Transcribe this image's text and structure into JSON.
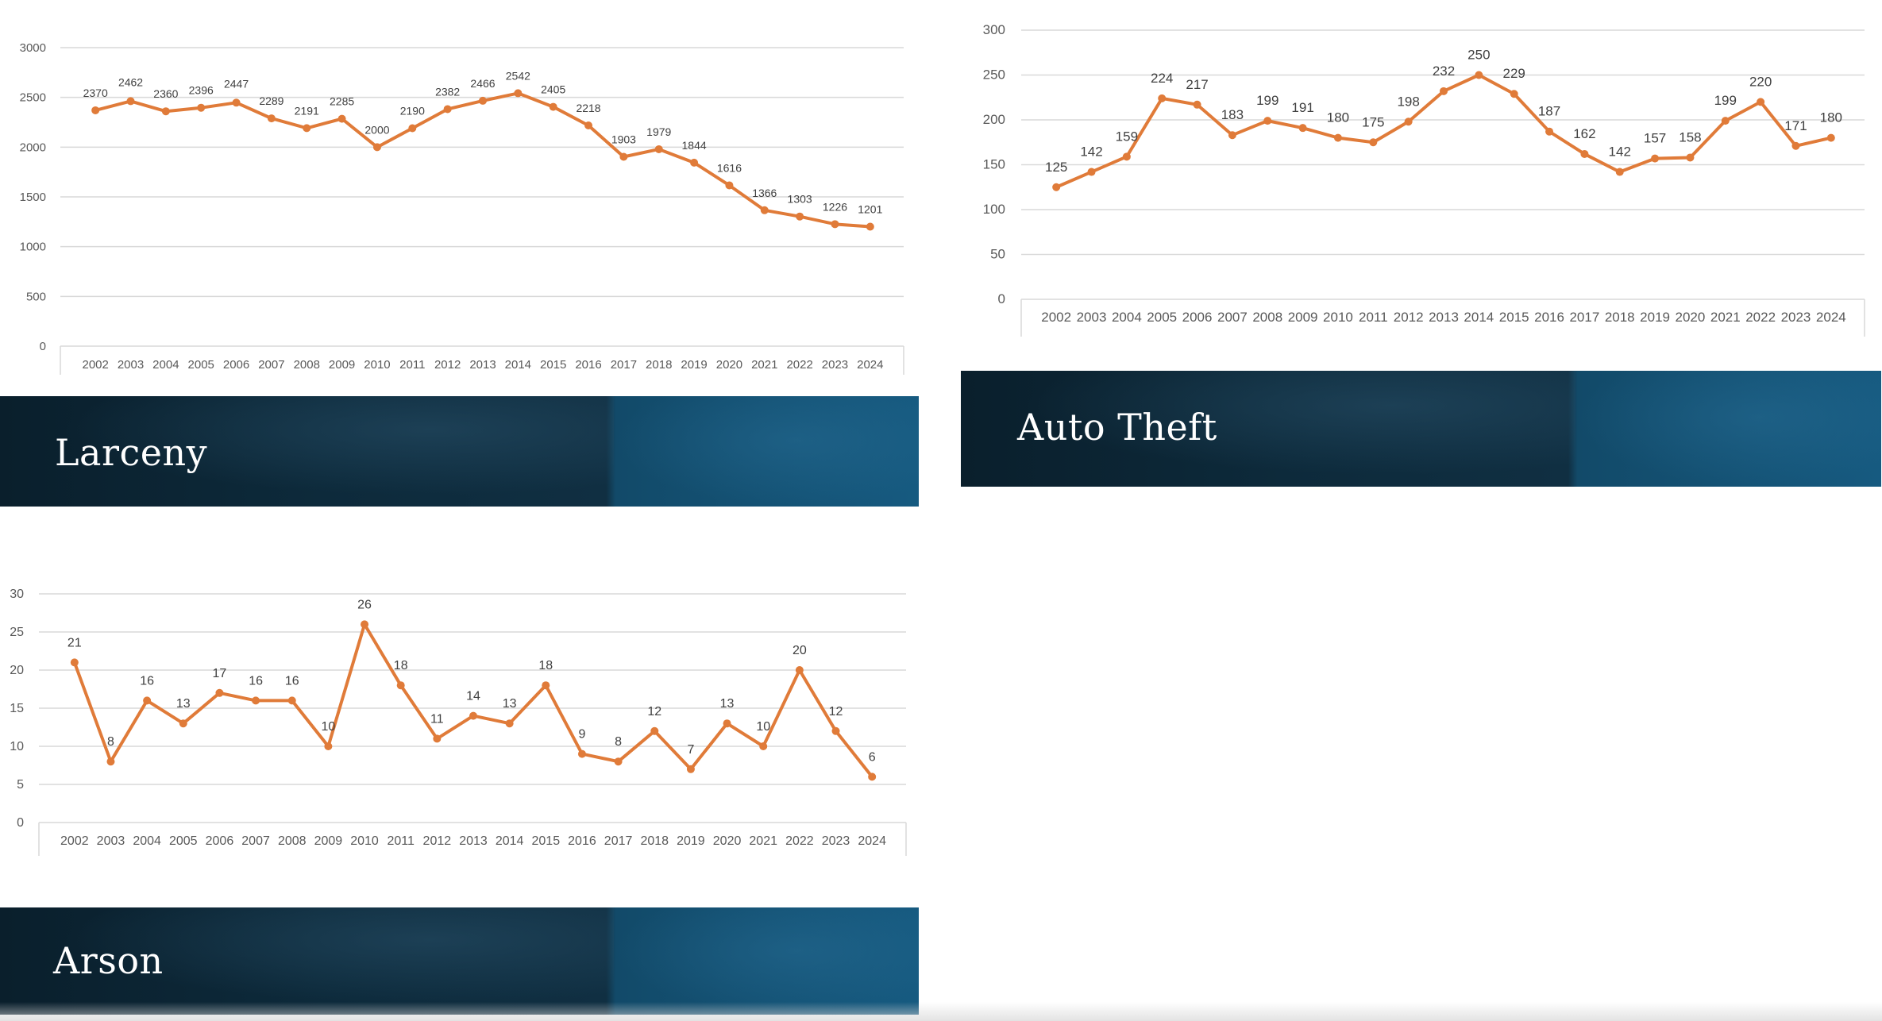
{
  "sections": [
    {
      "name": "larceny",
      "title": "Larceny"
    },
    {
      "name": "auto-theft",
      "title": "Auto Theft"
    },
    {
      "name": "arson",
      "title": "Arson"
    }
  ],
  "chart_data": [
    {
      "type": "line",
      "title": "",
      "xlabel": "",
      "ylabel": "",
      "categories": [
        "2002",
        "2003",
        "2004",
        "2005",
        "2006",
        "2007",
        "2008",
        "2009",
        "2010",
        "2011",
        "2012",
        "2013",
        "2014",
        "2015",
        "2016",
        "2017",
        "2018",
        "2019",
        "2020",
        "2021",
        "2022",
        "2023",
        "2024"
      ],
      "series": [
        {
          "values": [
            2370,
            2462,
            2360,
            2396,
            2447,
            2289,
            2191,
            2285,
            2000,
            2190,
            2382,
            2466,
            2542,
            2405,
            2218,
            1903,
            1979,
            1844,
            1616,
            1366,
            1303,
            1226,
            1201
          ]
        }
      ],
      "ylim": [
        0,
        3000
      ],
      "yticks": [
        0,
        500,
        1000,
        1500,
        2000,
        2500,
        3000
      ],
      "grid": true,
      "legend": "none",
      "line_color": "#E07B39",
      "data_labels": true
    },
    {
      "type": "line",
      "title": "",
      "xlabel": "",
      "ylabel": "",
      "categories": [
        "2002",
        "2003",
        "2004",
        "2005",
        "2006",
        "2007",
        "2008",
        "2009",
        "2010",
        "2011",
        "2012",
        "2013",
        "2014",
        "2015",
        "2016",
        "2017",
        "2018",
        "2019",
        "2020",
        "2021",
        "2022",
        "2023",
        "2024"
      ],
      "series": [
        {
          "values": [
            125,
            142,
            159,
            224,
            217,
            183,
            199,
            191,
            180,
            175,
            198,
            232,
            250,
            229,
            187,
            162,
            142,
            157,
            158,
            199,
            220,
            171,
            180
          ]
        }
      ],
      "ylim": [
        0,
        300
      ],
      "yticks": [
        0,
        50,
        100,
        150,
        200,
        250,
        300
      ],
      "grid": true,
      "legend": "none",
      "line_color": "#E07B39",
      "data_labels": true
    },
    {
      "type": "line",
      "title": "",
      "xlabel": "",
      "ylabel": "",
      "categories": [
        "2002",
        "2003",
        "2004",
        "2005",
        "2006",
        "2007",
        "2008",
        "2009",
        "2010",
        "2011",
        "2012",
        "2013",
        "2014",
        "2015",
        "2016",
        "2017",
        "2018",
        "2019",
        "2020",
        "2021",
        "2022",
        "2023",
        "2024"
      ],
      "series": [
        {
          "values": [
            21,
            8,
            16,
            13,
            17,
            16,
            16,
            10,
            26,
            18,
            11,
            14,
            13,
            18,
            9,
            8,
            12,
            7,
            13,
            10,
            20,
            12,
            6
          ]
        }
      ],
      "ylim": [
        0,
        30
      ],
      "yticks": [
        0,
        5,
        10,
        15,
        20,
        25,
        30
      ],
      "grid": true,
      "legend": "none",
      "line_color": "#E07B39",
      "data_labels": true
    }
  ]
}
